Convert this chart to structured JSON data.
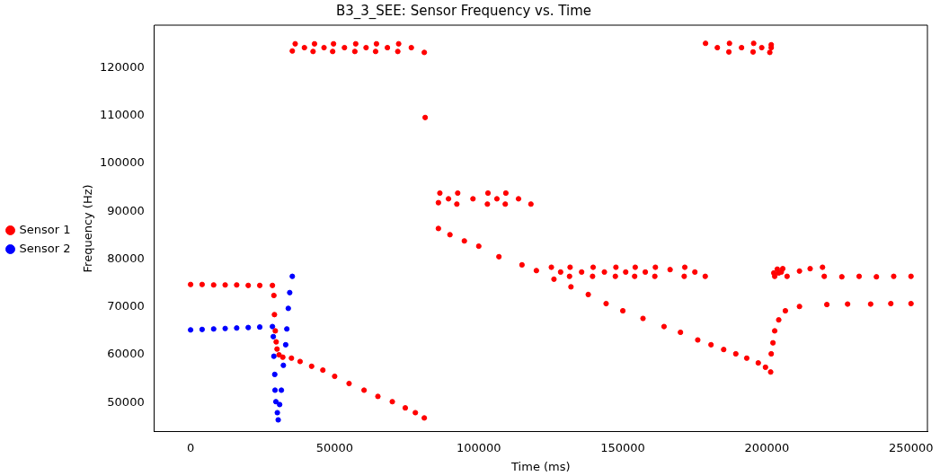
{
  "chart_data": {
    "type": "scatter",
    "title": "B3_3_SEE: Sensor Frequency vs. Time",
    "xlabel": "Time (ms)",
    "ylabel": "Frequency (Hz)",
    "xlim": [
      -12600,
      255700
    ],
    "ylim": [
      43900,
      128900
    ],
    "xticks": [
      0,
      50000,
      100000,
      150000,
      200000,
      250000
    ],
    "yticks": [
      50000,
      60000,
      70000,
      80000,
      90000,
      100000,
      110000,
      120000
    ],
    "grid": false,
    "legend": "left",
    "marker": "circle",
    "series": [
      {
        "name": "Sensor 1",
        "color": "#ff0000",
        "x": [
          0,
          4000,
          8000,
          12000,
          16000,
          20000,
          24000,
          28400,
          28900,
          29100,
          29400,
          29700,
          30000,
          30700,
          32000,
          35000,
          38000,
          42000,
          45900,
          50000,
          55000,
          60200,
          65000,
          70000,
          74500,
          78000,
          81100,
          81400,
          35300,
          36300,
          39500,
          42500,
          43000,
          46300,
          49300,
          49600,
          53400,
          57000,
          57300,
          60900,
          64200,
          64500,
          68300,
          71900,
          72200,
          76600,
          81100,
          86000,
          90000,
          95000,
          100000,
          107000,
          115000,
          120000,
          126100,
          132000,
          138000,
          144200,
          150000,
          157000,
          164300,
          170000,
          176000,
          180600,
          185000,
          189200,
          193000,
          197000,
          199500,
          201300,
          201500,
          202100,
          202700,
          204100,
          206400,
          211300,
          220800,
          228000,
          236000,
          243000,
          250000,
          86000,
          86500,
          89500,
          92400,
          92700,
          98000,
          103000,
          103200,
          106300,
          109200,
          109400,
          113800,
          118100,
          125200,
          128400,
          131500,
          131700,
          135700,
          139500,
          139700,
          143600,
          147400,
          147600,
          151000,
          154100,
          154300,
          157800,
          161100,
          161300,
          166400,
          171300,
          171500,
          175000,
          178600,
          178700,
          182800,
          186800,
          187000,
          191200,
          195200,
          195400,
          198200,
          201000,
          201500,
          201500,
          202400,
          202700,
          203600,
          204100,
          205000,
          205500,
          207000,
          211300,
          215000,
          219300,
          219900,
          226000,
          232000,
          238000,
          244000,
          250000
        ],
        "values": [
          74700,
          74700,
          74600,
          74600,
          74600,
          74500,
          74500,
          74500,
          72400,
          68400,
          65000,
          62700,
          61200,
          60000,
          59500,
          59300,
          58600,
          57600,
          56800,
          55500,
          54000,
          52600,
          51300,
          50200,
          48900,
          47900,
          46800,
          109600,
          123500,
          125000,
          124200,
          123400,
          125000,
          124200,
          123400,
          125000,
          124200,
          123400,
          125000,
          124200,
          123400,
          125000,
          124200,
          123400,
          125000,
          124200,
          123200,
          86400,
          85100,
          83800,
          82700,
          80500,
          78800,
          77600,
          75800,
          74200,
          72600,
          70700,
          69200,
          67600,
          65900,
          64700,
          63100,
          62100,
          61100,
          60200,
          59300,
          58300,
          57400,
          56400,
          60200,
          62500,
          65000,
          67300,
          69200,
          70100,
          70500,
          70600,
          70600,
          70700,
          70700,
          91800,
          93800,
          92600,
          91500,
          93800,
          92600,
          91500,
          93800,
          92600,
          91500,
          93800,
          92600,
          91500,
          78300,
          77300,
          76400,
          78300,
          77300,
          76400,
          78300,
          77300,
          76400,
          78300,
          77300,
          76400,
          78300,
          77300,
          76400,
          78300,
          77800,
          76400,
          78300,
          77300,
          76400,
          125100,
          124200,
          123300,
          125100,
          124200,
          123300,
          125100,
          124200,
          123200,
          124800,
          124200,
          77100,
          76400,
          77900,
          77100,
          77300,
          78000,
          76400,
          77500,
          78000,
          78300,
          76400,
          76300,
          76400,
          76300,
          76400,
          76400
        ]
      },
      {
        "name": "Sensor 2",
        "color": "#0000ff",
        "x": [
          0,
          4000,
          8000,
          12000,
          16000,
          20000,
          24000,
          28400,
          28700,
          28900,
          29200,
          29300,
          29600,
          30100,
          30400,
          30900,
          31500,
          32200,
          33000,
          33400,
          33900,
          34400,
          35300
        ],
        "values": [
          65200,
          65300,
          65400,
          65500,
          65600,
          65700,
          65800,
          65900,
          63800,
          59700,
          55900,
          52600,
          50200,
          47900,
          46400,
          49600,
          52600,
          57800,
          62100,
          65400,
          69700,
          73000,
          76400
        ]
      }
    ]
  }
}
